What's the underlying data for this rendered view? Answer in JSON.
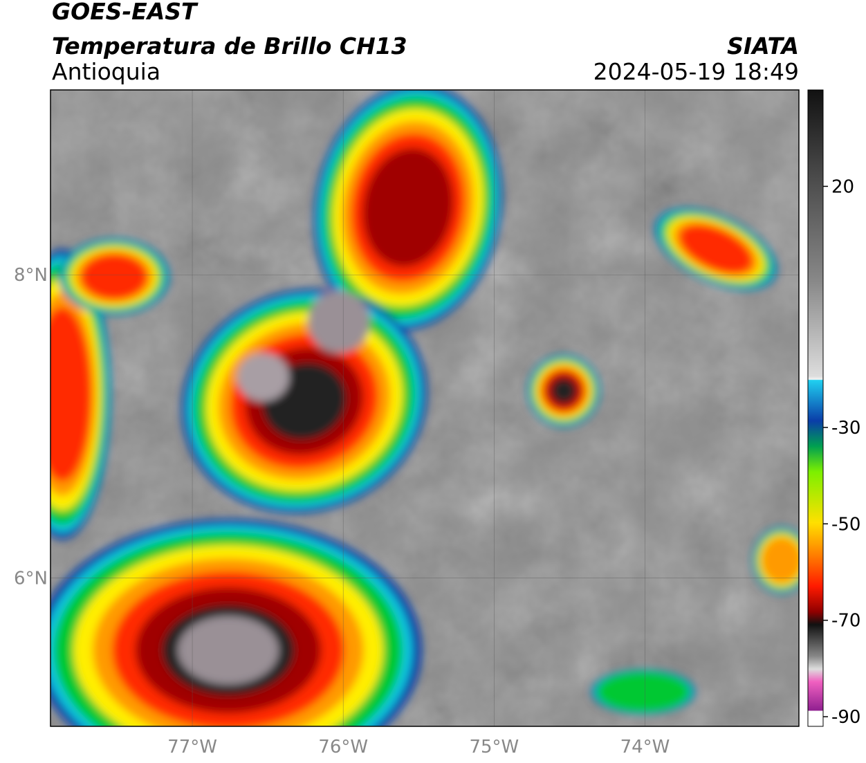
{
  "header": {
    "title": "GOES-EAST",
    "subtitle": "Temperatura de Brillo CH13",
    "region": "Antioquia",
    "source": "SIATA",
    "datetime": "2024-05-19 18:49"
  },
  "map": {
    "xlim": [
      -77.94,
      -72.98
    ],
    "ylim": [
      5.02,
      9.22
    ],
    "xticks": [
      {
        "value": -77,
        "label": "77°W"
      },
      {
        "value": -76,
        "label": "76°W"
      },
      {
        "value": -75,
        "label": "75°W"
      },
      {
        "value": -74,
        "label": "74°W"
      }
    ],
    "yticks": [
      {
        "value": 6,
        "label": "6°N"
      },
      {
        "value": 8,
        "label": "8°N"
      }
    ],
    "grid": true
  },
  "colorbar": {
    "lim": [
      -92,
      40
    ],
    "ticks": [
      20,
      -30,
      -50,
      -70,
      -90
    ]
  }
}
